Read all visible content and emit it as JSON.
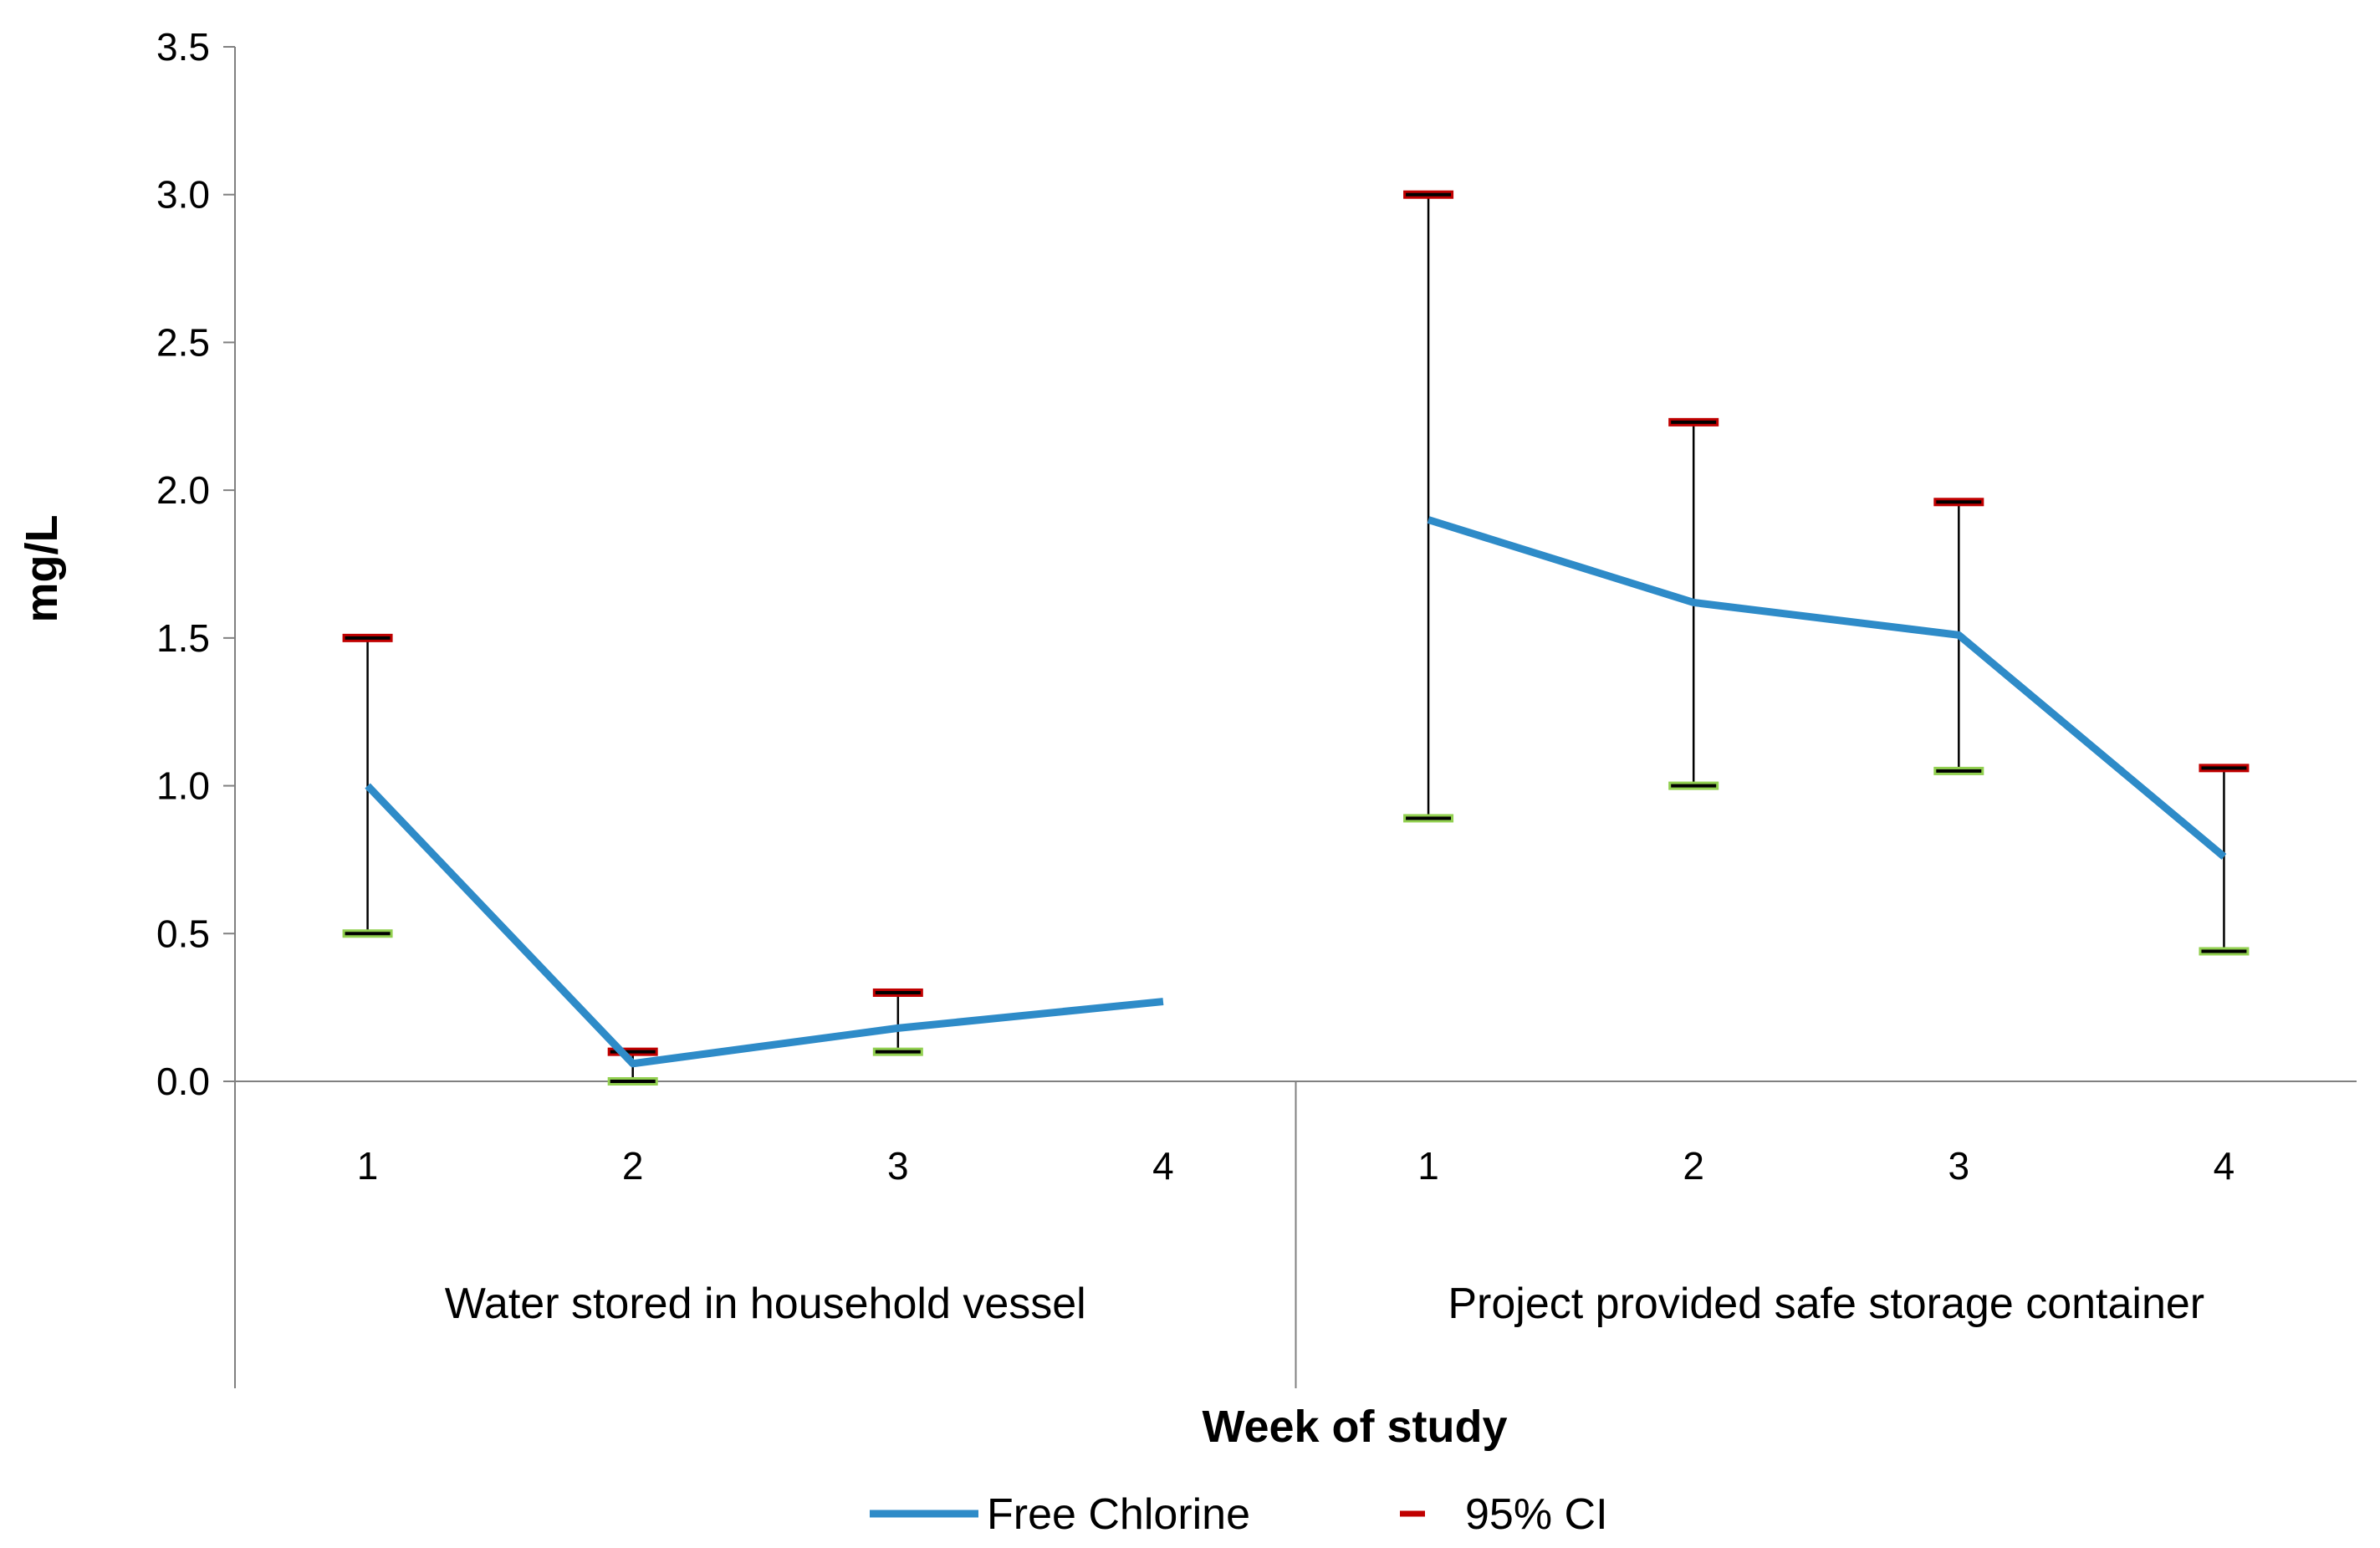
{
  "chart_data": {
    "type": "line",
    "ylabel": "mg/L",
    "xlabel": "Week of study",
    "ylim": [
      0,
      3.5
    ],
    "yticks": [
      "0.0",
      "0.5",
      "1.0",
      "1.5",
      "2.0",
      "2.5",
      "3.0",
      "3.5"
    ],
    "grid": false,
    "legend_position": "bottom",
    "groups": [
      {
        "label": "Water stored in household vessel",
        "categories": [
          "1",
          "2",
          "3",
          "4"
        ],
        "values": [
          1.0,
          0.06,
          0.18,
          0.27
        ],
        "ci_upper": [
          1.5,
          0.1,
          0.3,
          null
        ],
        "ci_lower": [
          0.5,
          0.0,
          0.1,
          null
        ]
      },
      {
        "label": "Project provided safe storage container",
        "categories": [
          "1",
          "2",
          "3",
          "4"
        ],
        "values": [
          1.9,
          1.62,
          1.51,
          0.76
        ],
        "ci_upper": [
          3.0,
          2.23,
          1.96,
          1.06
        ],
        "ci_lower": [
          0.89,
          1.0,
          1.05,
          0.44
        ]
      }
    ],
    "series": [
      {
        "name": "Free Chlorine",
        "color": "#2E8BC8"
      },
      {
        "name": "95% CI",
        "color": "#C00000",
        "lower_color": "#92D050"
      }
    ]
  }
}
